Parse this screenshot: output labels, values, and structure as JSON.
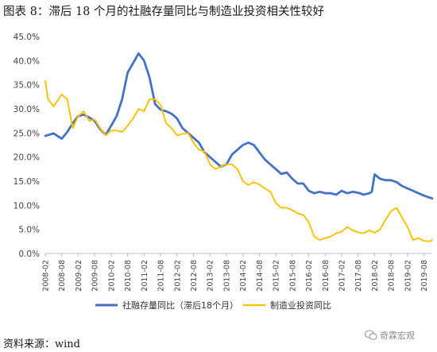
{
  "figure": {
    "title": "图表 8：滞后 18 个月的社融存量同比与制造业投资相关性较好",
    "source": "资料来源：wind",
    "watermark": "奇霖宏观"
  },
  "colors": {
    "blue": "#4472C4",
    "yellow": "#FFC000"
  },
  "chart_data": {
    "type": "line",
    "title": "",
    "xlabel": "",
    "ylabel": "",
    "ylim": [
      0,
      45
    ],
    "xlim": [
      "2008-02",
      "2019-11"
    ],
    "grid": false,
    "legend": "bottom",
    "x_ticks": [
      "2008-02",
      "2008-08",
      "2009-02",
      "2009-08",
      "2010-02",
      "2010-08",
      "2011-02",
      "2011-08",
      "2012-02",
      "2012-08",
      "2013-02",
      "2013-08",
      "2014-02",
      "2014-08",
      "2015-02",
      "2015-08",
      "2016-02",
      "2016-08",
      "2017-02",
      "2017-08",
      "2018-02",
      "2018-08",
      "2019-02",
      "2019-08"
    ],
    "y_ticks": [
      "0.0%",
      "5.0%",
      "10.0%",
      "15.0%",
      "20.0%",
      "25.0%",
      "30.0%",
      "35.0%",
      "40.0%",
      "45.0%"
    ],
    "series": [
      {
        "name": "社融存量同比（滞后18个月）",
        "color": "#4472C4",
        "x": [
          "2008-02",
          "2008-05",
          "2008-08",
          "2008-10",
          "2008-12",
          "2009-02",
          "2009-04",
          "2009-06",
          "2009-08",
          "2009-10",
          "2009-12",
          "2010-02",
          "2010-04",
          "2010-06",
          "2010-08",
          "2010-10",
          "2010-12",
          "2011-02",
          "2011-04",
          "2011-06",
          "2011-08",
          "2011-10",
          "2011-12",
          "2012-02",
          "2012-04",
          "2012-06",
          "2012-08",
          "2012-10",
          "2012-12",
          "2013-02",
          "2013-04",
          "2013-06",
          "2013-08",
          "2013-10",
          "2013-12",
          "2014-02",
          "2014-04",
          "2014-06",
          "2014-08",
          "2014-10",
          "2014-12",
          "2015-02",
          "2015-04",
          "2015-06",
          "2015-08",
          "2015-10",
          "2015-12",
          "2016-02",
          "2016-04",
          "2016-06",
          "2016-08",
          "2016-10",
          "2016-12",
          "2017-02",
          "2017-04",
          "2017-06",
          "2017-08",
          "2017-10",
          "2017-12",
          "2018-01",
          "2018-02",
          "2018-04",
          "2018-06",
          "2018-08",
          "2018-10",
          "2018-12",
          "2019-02",
          "2019-04",
          "2019-06",
          "2019-08",
          "2019-10",
          "2019-11"
        ],
        "values": [
          24.4,
          24.9,
          23.8,
          25.2,
          27.0,
          28.5,
          28.8,
          28.2,
          27.5,
          25.8,
          24.6,
          26.5,
          28.5,
          32.0,
          37.5,
          39.5,
          41.5,
          40.0,
          36.5,
          31.0,
          29.8,
          29.5,
          29.0,
          28.0,
          26.0,
          25.0,
          24.0,
          23.0,
          21.0,
          20.0,
          19.0,
          18.0,
          18.5,
          20.5,
          21.5,
          22.5,
          23.0,
          22.5,
          21.0,
          19.5,
          18.5,
          17.5,
          16.5,
          16.8,
          15.5,
          14.5,
          14.5,
          13.0,
          12.5,
          12.8,
          12.5,
          12.5,
          12.2,
          13.0,
          12.5,
          12.8,
          12.6,
          12.2,
          12.5,
          12.8,
          16.4,
          15.5,
          15.2,
          15.2,
          14.8,
          14.0,
          13.5,
          13.0,
          12.5,
          12.0,
          11.6,
          11.4
        ]
      },
      {
        "name": "制造业投资同比",
        "color": "#FFC000",
        "x": [
          "2008-02",
          "2008-03",
          "2008-05",
          "2008-08",
          "2008-10",
          "2008-12",
          "2009-02",
          "2009-04",
          "2009-06",
          "2009-08",
          "2009-10",
          "2009-12",
          "2010-02",
          "2010-04",
          "2010-06",
          "2010-08",
          "2010-10",
          "2010-12",
          "2011-02",
          "2011-04",
          "2011-06",
          "2011-08",
          "2011-10",
          "2011-12",
          "2012-02",
          "2012-04",
          "2012-06",
          "2012-08",
          "2012-10",
          "2012-12",
          "2013-02",
          "2013-04",
          "2013-06",
          "2013-08",
          "2013-10",
          "2013-12",
          "2014-02",
          "2014-04",
          "2014-06",
          "2014-08",
          "2014-10",
          "2014-12",
          "2015-02",
          "2015-04",
          "2015-06",
          "2015-08",
          "2015-10",
          "2015-12",
          "2016-02",
          "2016-04",
          "2016-06",
          "2016-08",
          "2016-10",
          "2016-12",
          "2017-02",
          "2017-04",
          "2017-06",
          "2017-08",
          "2017-10",
          "2017-12",
          "2018-02",
          "2018-04",
          "2018-06",
          "2018-08",
          "2018-10",
          "2018-12",
          "2019-02",
          "2019-04",
          "2019-06",
          "2019-08",
          "2019-10",
          "2019-11"
        ],
        "values": [
          35.8,
          32.0,
          30.5,
          33.0,
          32.0,
          26.0,
          28.5,
          29.5,
          27.5,
          27.8,
          26.0,
          24.5,
          25.5,
          25.5,
          25.2,
          26.5,
          28.0,
          30.0,
          29.5,
          32.0,
          32.0,
          30.8,
          27.0,
          26.0,
          24.5,
          24.8,
          25.0,
          23.0,
          21.5,
          21.2,
          18.5,
          17.5,
          18.0,
          18.5,
          18.5,
          17.5,
          15.0,
          14.2,
          14.8,
          14.3,
          13.5,
          12.8,
          10.5,
          9.5,
          9.5,
          9.0,
          8.3,
          8.0,
          6.5,
          3.5,
          2.8,
          3.2,
          3.5,
          4.2,
          4.5,
          5.5,
          4.8,
          4.4,
          4.2,
          4.8,
          4.3,
          5.0,
          7.0,
          8.8,
          9.5,
          7.5,
          5.5,
          2.8,
          3.2,
          2.6,
          2.5,
          2.8
        ]
      }
    ]
  }
}
